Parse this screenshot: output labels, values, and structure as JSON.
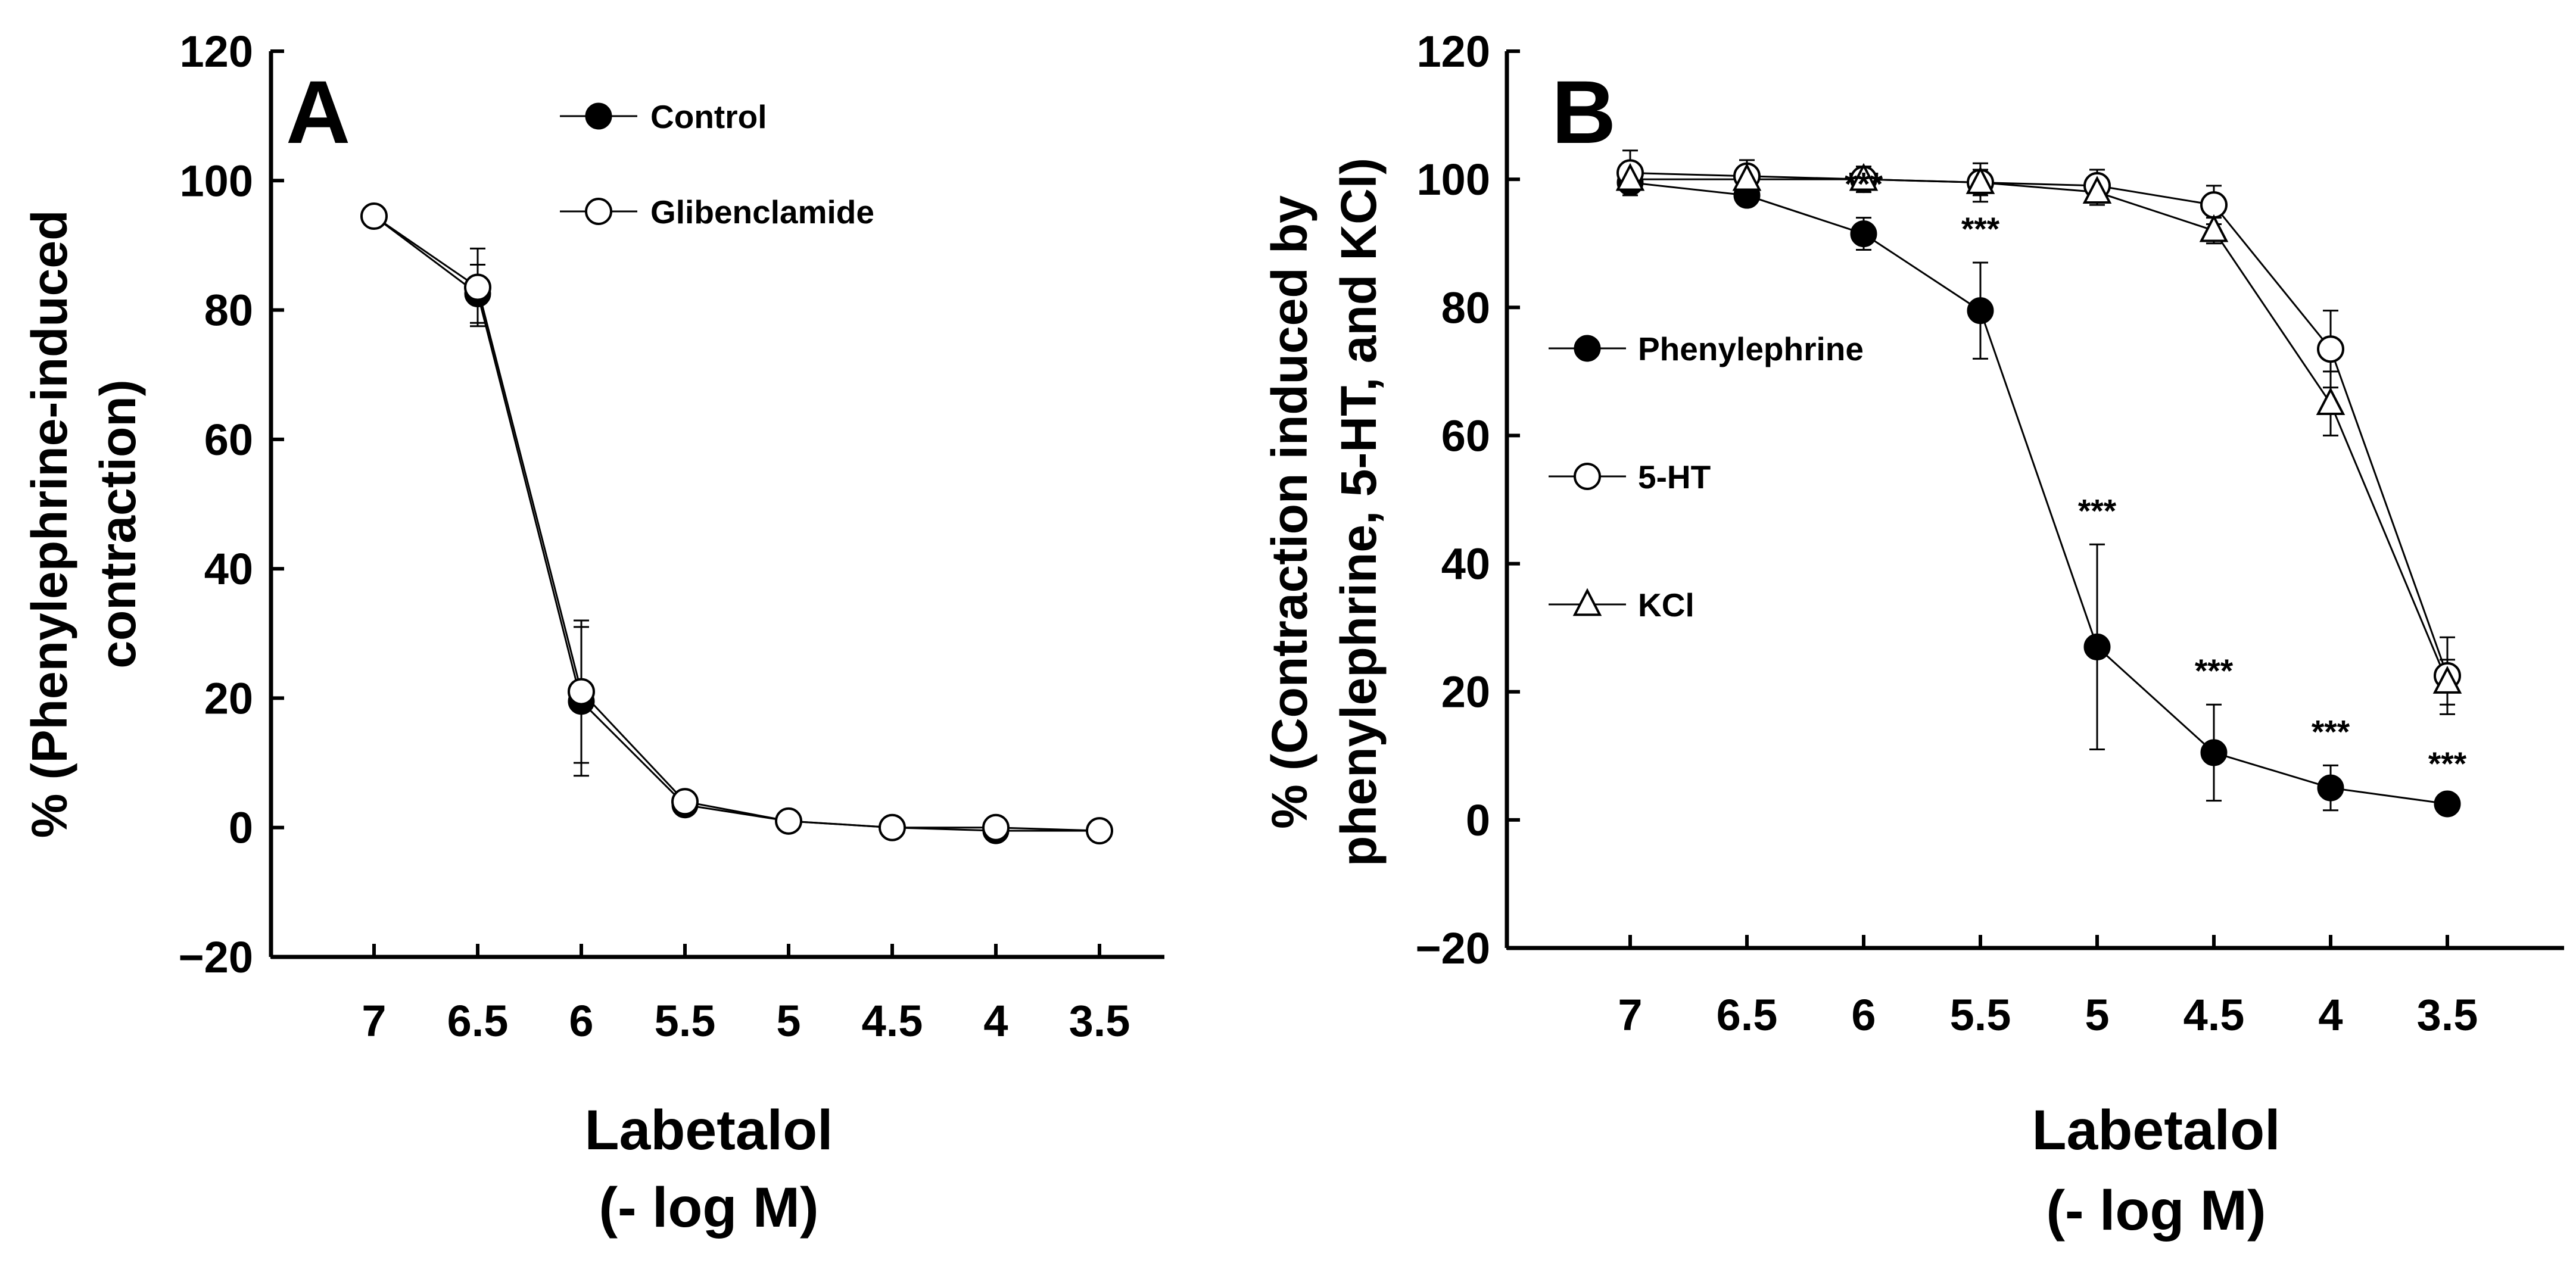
{
  "chart_data": [
    {
      "type": "line",
      "panel_label": "A",
      "title": "",
      "ylabel_lines": [
        "% (Phenylephrine-induced",
        "contraction)"
      ],
      "xlabel_lines": [
        "Labetalol",
        "(- log M)"
      ],
      "ylim": [
        -20,
        120
      ],
      "yticks": [
        -20,
        0,
        20,
        40,
        60,
        80,
        100,
        120
      ],
      "ytick_labels": [
        "−20",
        "0",
        "20",
        "40",
        "60",
        "80",
        "100",
        "120"
      ],
      "categories": [
        "7",
        "6.5",
        "6",
        "5.5",
        "5",
        "4.5",
        "4",
        "3.5"
      ],
      "legend_position": "top-center",
      "series": [
        {
          "name": "Control",
          "marker": "filled-circle",
          "values": [
            94.5,
            82.5,
            19.5,
            3.5,
            1,
            0,
            -0.5,
            -0.5
          ],
          "errors": [
            0,
            4.5,
            11.5,
            1,
            0.5,
            0,
            0,
            0
          ]
        },
        {
          "name": "Glibenclamide",
          "marker": "open-circle",
          "values": [
            94.5,
            83.5,
            21,
            4,
            1,
            0,
            0,
            -0.5
          ],
          "errors": [
            0,
            6,
            11,
            1,
            0.5,
            0,
            0,
            0
          ]
        }
      ],
      "significance": []
    },
    {
      "type": "line",
      "panel_label": "B",
      "title": "",
      "ylabel_lines": [
        "% (Contraction induced by",
        "phenylephrine, 5-HT, and KCl)"
      ],
      "xlabel_lines": [
        "Labetalol",
        "(- log M)"
      ],
      "ylim": [
        -20,
        120
      ],
      "yticks": [
        -20,
        0,
        20,
        40,
        60,
        80,
        100,
        120
      ],
      "ytick_labels": [
        "−20",
        "0",
        "20",
        "40",
        "60",
        "80",
        "100",
        "120"
      ],
      "categories": [
        "7",
        "6.5",
        "6",
        "5.5",
        "5",
        "4.5",
        "4",
        "3.5"
      ],
      "legend_position": "center-left",
      "series": [
        {
          "name": "Phenylephrine",
          "marker": "filled-circle",
          "values": [
            99.5,
            97.5,
            91.5,
            79.5,
            27,
            10.5,
            5,
            2.5
          ],
          "errors": [
            1.5,
            1.5,
            2.5,
            7.5,
            16,
            7.5,
            3.5,
            1
          ]
        },
        {
          "name": "5-HT",
          "marker": "open-circle",
          "values": [
            101,
            100.5,
            100,
            99.5,
            99,
            96,
            73.5,
            22.5
          ],
          "errors": [
            3.5,
            2.5,
            2,
            3,
            2.5,
            3,
            6,
            6
          ]
        },
        {
          "name": "KCl",
          "marker": "open-triangle",
          "values": [
            100,
            100,
            100,
            99.5,
            98,
            92,
            65,
            21.5
          ],
          "errors": [
            2.5,
            2,
            1.5,
            2,
            2,
            2,
            5,
            3.5
          ]
        }
      ],
      "significance": [
        {
          "index": 2,
          "label": "***"
        },
        {
          "index": 3,
          "label": "***"
        },
        {
          "index": 4,
          "label": "***"
        },
        {
          "index": 5,
          "label": "***"
        },
        {
          "index": 6,
          "label": "***"
        },
        {
          "index": 7,
          "label": "***"
        }
      ]
    }
  ]
}
